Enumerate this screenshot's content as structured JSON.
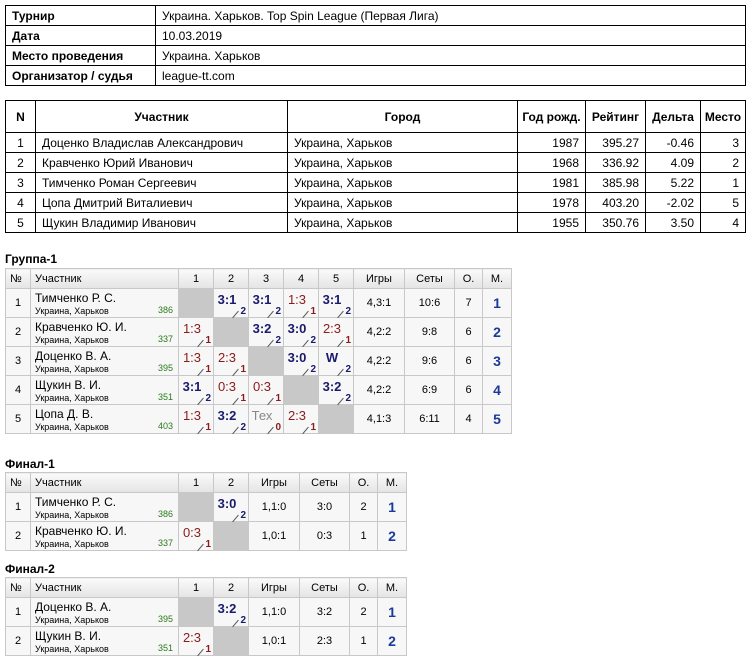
{
  "info": {
    "rows": [
      [
        "Турнир",
        "Украина. Харьков. Top Spin League (Первая Лига)"
      ],
      [
        "Дата",
        "10.03.2019"
      ],
      [
        "Место проведения",
        "Украина. Харьков"
      ],
      [
        "Организатор / судья",
        "league-tt.com"
      ]
    ]
  },
  "players": {
    "header": [
      "N",
      "Участник",
      "Город",
      "Год рожд.",
      "Рейтинг",
      "Дельта",
      "Место"
    ],
    "rows": [
      [
        "1",
        "Доценко Владислав Александрович",
        "Украина, Харьков",
        "1987",
        "395.27",
        "-0.46",
        "3"
      ],
      [
        "2",
        "Кравченко Юрий Иванович",
        "Украина, Харьков",
        "1968",
        "336.92",
        "4.09",
        "2"
      ],
      [
        "3",
        "Тимченко Роман Сергеевич",
        "Украина, Харьков",
        "1981",
        "385.98",
        "5.22",
        "1"
      ],
      [
        "4",
        "Цопа Дмитрий Виталиевич",
        "Украина, Харьков",
        "1978",
        "403.20",
        "-2.02",
        "5"
      ],
      [
        "5",
        "Щукин Владимир Иванович",
        "Украина, Харьков",
        "1955",
        "350.76",
        "3.50",
        "4"
      ]
    ]
  },
  "groups": [
    {
      "title": "Группа-1",
      "header": [
        "№",
        "Участник",
        "1",
        "2",
        "3",
        "4",
        "5",
        "Игры",
        "Сеты",
        "О.",
        "М."
      ],
      "rows": [
        {
          "no": "1",
          "name": "Тимченко Р. С.",
          "city": "Украина, Харьков",
          "rating": "386",
          "cells": [
            null,
            {
              "score": "3:1",
              "pts": "2"
            },
            {
              "score": "3:1",
              "pts": "2"
            },
            {
              "score": "1:3",
              "pts": "1"
            },
            {
              "score": "3:1",
              "pts": "2"
            }
          ],
          "games": "4,3:1",
          "sets": "10:6",
          "points": "7",
          "place": "1"
        },
        {
          "no": "2",
          "name": "Кравченко Ю. И.",
          "city": "Украина, Харьков",
          "rating": "337",
          "cells": [
            {
              "score": "1:3",
              "pts": "1"
            },
            null,
            {
              "score": "3:2",
              "pts": "2"
            },
            {
              "score": "3:0",
              "pts": "2"
            },
            {
              "score": "2:3",
              "pts": "1"
            }
          ],
          "games": "4,2:2",
          "sets": "9:8",
          "points": "6",
          "place": "2"
        },
        {
          "no": "3",
          "name": "Доценко В. А.",
          "city": "Украина, Харьков",
          "rating": "395",
          "cells": [
            {
              "score": "1:3",
              "pts": "1"
            },
            {
              "score": "2:3",
              "pts": "1"
            },
            null,
            {
              "score": "3:0",
              "pts": "2"
            },
            {
              "score": "W",
              "pts": "2"
            }
          ],
          "games": "4,2:2",
          "sets": "9:6",
          "points": "6",
          "place": "3"
        },
        {
          "no": "4",
          "name": "Щукин В. И.",
          "city": "Украина, Харьков",
          "rating": "351",
          "cells": [
            {
              "score": "3:1",
              "pts": "2"
            },
            {
              "score": "0:3",
              "pts": "1"
            },
            {
              "score": "0:3",
              "pts": "1"
            },
            null,
            {
              "score": "3:2",
              "pts": "2"
            }
          ],
          "games": "4,2:2",
          "sets": "6:9",
          "points": "6",
          "place": "4"
        },
        {
          "no": "5",
          "name": "Цопа Д. В.",
          "city": "Украина, Харьков",
          "rating": "403",
          "cells": [
            {
              "score": "1:3",
              "pts": "1"
            },
            {
              "score": "3:2",
              "pts": "2"
            },
            {
              "score": "Тех",
              "pts": "0"
            },
            {
              "score": "2:3",
              "pts": "1"
            },
            null
          ],
          "games": "4,1:3",
          "sets": "6:11",
          "points": "4",
          "place": "5"
        }
      ]
    },
    {
      "title": "Финал-1",
      "header": [
        "№",
        "Участник",
        "1",
        "2",
        "Игры",
        "Сеты",
        "О.",
        "М."
      ],
      "rows": [
        {
          "no": "1",
          "name": "Тимченко Р. С.",
          "city": "Украина, Харьков",
          "rating": "386",
          "cells": [
            null,
            {
              "score": "3:0",
              "pts": "2"
            }
          ],
          "games": "1,1:0",
          "sets": "3:0",
          "points": "2",
          "place": "1"
        },
        {
          "no": "2",
          "name": "Кравченко Ю. И.",
          "city": "Украина, Харьков",
          "rating": "337",
          "cells": [
            {
              "score": "0:3",
              "pts": "1"
            },
            null
          ],
          "games": "1,0:1",
          "sets": "0:3",
          "points": "1",
          "place": "2"
        }
      ]
    },
    {
      "title": "Финал-2",
      "header": [
        "№",
        "Участник",
        "1",
        "2",
        "Игры",
        "Сеты",
        "О.",
        "М."
      ],
      "rows": [
        {
          "no": "1",
          "name": "Доценко В. А.",
          "city": "Украина, Харьков",
          "rating": "395",
          "cells": [
            null,
            {
              "score": "3:2",
              "pts": "2"
            }
          ],
          "games": "1,1:0",
          "sets": "3:2",
          "points": "2",
          "place": "1"
        },
        {
          "no": "2",
          "name": "Щукин В. И.",
          "city": "Украина, Харьков",
          "rating": "351",
          "cells": [
            {
              "score": "2:3",
              "pts": "1"
            },
            null
          ],
          "games": "1,0:1",
          "sets": "2:3",
          "points": "1",
          "place": "2"
        }
      ]
    }
  ]
}
